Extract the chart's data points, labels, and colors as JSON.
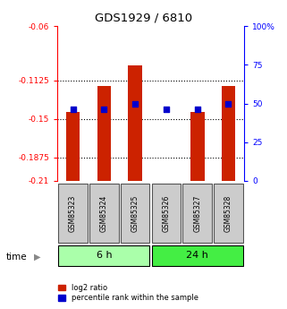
{
  "title": "GDS1929 / 6810",
  "samples": [
    "GSM85323",
    "GSM85324",
    "GSM85325",
    "GSM85326",
    "GSM85327",
    "GSM85328"
  ],
  "log2_ratio": [
    -0.143,
    -0.118,
    -0.098,
    -0.21,
    -0.143,
    -0.118
  ],
  "percentile_rank": [
    46,
    46,
    50,
    46,
    46,
    50
  ],
  "bar_bottom": -0.21,
  "ylim_left": [
    -0.21,
    -0.06
  ],
  "ylim_right": [
    0,
    100
  ],
  "yticks_left": [
    -0.21,
    -0.1875,
    -0.15,
    -0.1125,
    -0.06
  ],
  "ytick_labels_left": [
    "-0.21",
    "-0.1875",
    "-0.15",
    "-0.1125",
    "-0.06"
  ],
  "yticks_right": [
    0,
    25,
    50,
    75,
    100
  ],
  "ytick_labels_right": [
    "0",
    "25",
    "50",
    "75",
    "100%"
  ],
  "groups": [
    {
      "label": "6 h",
      "samples": [
        0,
        1,
        2
      ],
      "color": "#aaffaa"
    },
    {
      "label": "24 h",
      "samples": [
        3,
        4,
        5
      ],
      "color": "#44ee44"
    }
  ],
  "bar_color": "#cc2200",
  "dot_color": "#0000cc",
  "time_label": "time",
  "legend_ratio_label": "log2 ratio",
  "legend_percentile_label": "percentile rank within the sample",
  "bg_color": "#ffffff",
  "label_box_color": "#cccccc",
  "label_box_edgecolor": "#555555"
}
